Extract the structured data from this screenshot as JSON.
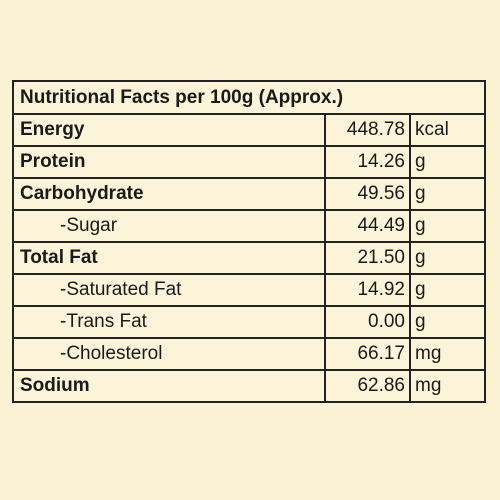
{
  "header": {
    "title": "Nutritional Facts per 100g (Approx.)"
  },
  "table": {
    "rows": [
      [
        "Energy",
        "448.78",
        "kcal"
      ],
      [
        "Protein",
        "14.26",
        "g"
      ],
      [
        "Carbohydrate",
        "49.56",
        "g"
      ],
      [
        "-Sugar",
        "44.49",
        "g"
      ],
      [
        "Total Fat",
        "21.50",
        "g"
      ],
      [
        "-Saturated Fat",
        "14.92",
        "g"
      ],
      [
        "-Trans Fat",
        "0.00",
        "g"
      ],
      [
        "-Cholesterol",
        "66.17",
        "mg"
      ],
      [
        "Sodium",
        "62.86",
        "mg"
      ]
    ]
  }
}
